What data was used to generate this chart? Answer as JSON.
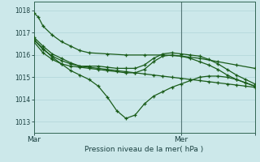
{
  "xlabel": "Pression niveau de la mer( hPa )",
  "bg_color": "#cce8ea",
  "line_color": "#1a5c1a",
  "grid_color": "#b0d4d8",
  "spine_color": "#336655",
  "ylim": [
    1012.5,
    1018.4
  ],
  "xlim": [
    0,
    48
  ],
  "yticks": [
    1013,
    1014,
    1015,
    1016,
    1017,
    1018
  ],
  "xtick_positions": [
    0,
    32,
    48
  ],
  "xtick_labels": [
    "Mar",
    "Mer",
    ""
  ],
  "vline_x": 32,
  "series": [
    {
      "x": [
        0,
        1,
        2,
        4,
        6,
        8,
        10,
        12,
        16,
        20,
        24,
        28,
        32,
        36,
        40,
        44,
        48
      ],
      "y": [
        1017.9,
        1017.7,
        1017.3,
        1016.9,
        1016.6,
        1016.4,
        1016.2,
        1016.1,
        1016.05,
        1016.0,
        1016.0,
        1016.0,
        1015.95,
        1015.85,
        1015.7,
        1015.55,
        1015.4
      ]
    },
    {
      "x": [
        0,
        2,
        4,
        6,
        8,
        10,
        12,
        14,
        16,
        18,
        20,
        22,
        24,
        26,
        28,
        30,
        32,
        34,
        36,
        38,
        40,
        42,
        44,
        46,
        48
      ],
      "y": [
        1016.8,
        1016.4,
        1016.05,
        1015.85,
        1015.65,
        1015.5,
        1015.45,
        1015.4,
        1015.35,
        1015.3,
        1015.25,
        1015.2,
        1015.15,
        1015.1,
        1015.05,
        1015.0,
        1014.95,
        1014.9,
        1014.85,
        1014.8,
        1014.75,
        1014.7,
        1014.65,
        1014.6,
        1014.55
      ]
    },
    {
      "x": [
        0,
        2,
        4,
        6,
        8,
        10,
        12,
        14,
        16,
        18,
        20,
        22,
        24,
        26,
        28,
        30,
        32,
        34,
        36,
        38,
        40,
        42,
        44,
        46,
        48
      ],
      "y": [
        1016.7,
        1016.3,
        1015.9,
        1015.6,
        1015.3,
        1015.1,
        1014.9,
        1014.6,
        1014.1,
        1013.5,
        1013.15,
        1013.3,
        1013.8,
        1014.15,
        1014.35,
        1014.55,
        1014.7,
        1014.85,
        1015.0,
        1015.05,
        1015.05,
        1015.0,
        1014.9,
        1014.75,
        1014.6
      ]
    },
    {
      "x": [
        0,
        2,
        4,
        6,
        8,
        10,
        12,
        14,
        16,
        18,
        20,
        22,
        24,
        26,
        28,
        30,
        32,
        34,
        36,
        38,
        40,
        42,
        44,
        46,
        48
      ],
      "y": [
        1016.7,
        1016.25,
        1015.95,
        1015.75,
        1015.6,
        1015.5,
        1015.5,
        1015.5,
        1015.45,
        1015.4,
        1015.4,
        1015.4,
        1015.55,
        1015.85,
        1016.05,
        1016.1,
        1016.05,
        1016.0,
        1015.95,
        1015.8,
        1015.6,
        1015.35,
        1015.1,
        1014.9,
        1014.7
      ]
    },
    {
      "x": [
        0,
        2,
        4,
        6,
        8,
        10,
        12,
        14,
        16,
        18,
        20,
        22,
        24,
        26,
        28,
        30,
        32,
        34,
        36,
        38,
        40,
        42,
        44,
        46,
        48
      ],
      "y": [
        1016.6,
        1016.1,
        1015.8,
        1015.6,
        1015.5,
        1015.45,
        1015.4,
        1015.35,
        1015.3,
        1015.25,
        1015.2,
        1015.2,
        1015.35,
        1015.7,
        1015.95,
        1016.0,
        1015.95,
        1015.85,
        1015.7,
        1015.55,
        1015.35,
        1015.1,
        1014.9,
        1014.75,
        1014.6
      ]
    }
  ]
}
